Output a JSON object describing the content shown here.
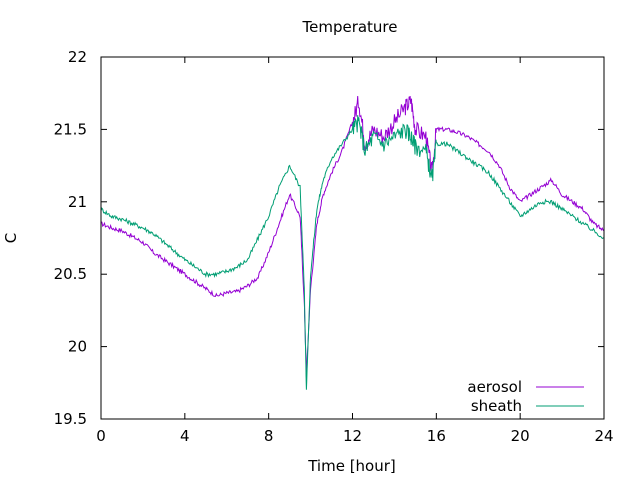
{
  "chart_data": {
    "type": "line",
    "title": "Temperature",
    "xlabel": "Time [hour]",
    "ylabel": "C",
    "xlim": [
      0,
      24
    ],
    "ylim": [
      19.5,
      22
    ],
    "xticks": [
      "0",
      "4",
      "8",
      "12",
      "16",
      "20",
      "24"
    ],
    "yticks": [
      "19.5",
      "20",
      "20.5",
      "21",
      "21.5",
      "22"
    ],
    "grid": false,
    "legend_position": "bottom-right",
    "series": [
      {
        "name": "aerosol",
        "color": "#9400d3",
        "x": [
          0,
          0.5,
          1,
          1.5,
          2,
          2.5,
          3,
          3.5,
          4,
          4.5,
          5,
          5.5,
          6,
          6.5,
          7,
          7.5,
          8,
          8.5,
          9,
          9.5,
          9.7,
          9.8,
          10,
          10.3,
          10.6,
          11,
          11.5,
          12,
          12.3,
          12.6,
          13,
          13.5,
          14,
          14.5,
          14.8,
          15,
          15.5,
          15.8,
          16,
          16.5,
          17,
          17.5,
          18,
          18.5,
          19,
          19.5,
          20,
          20.5,
          21,
          21.5,
          22,
          22.5,
          23,
          23.5,
          24
        ],
        "y": [
          20.85,
          20.82,
          20.8,
          20.76,
          20.72,
          20.65,
          20.6,
          20.55,
          20.5,
          20.45,
          20.4,
          20.35,
          20.37,
          20.38,
          20.42,
          20.48,
          20.65,
          20.85,
          21.05,
          20.9,
          20.3,
          19.8,
          20.4,
          20.85,
          21.05,
          21.2,
          21.35,
          21.55,
          21.7,
          21.4,
          21.5,
          21.45,
          21.55,
          21.65,
          21.7,
          21.5,
          21.45,
          21.2,
          21.5,
          21.5,
          21.48,
          21.45,
          21.4,
          21.35,
          21.25,
          21.1,
          21.0,
          21.05,
          21.1,
          21.15,
          21.05,
          21.0,
          20.95,
          20.85,
          20.8
        ]
      },
      {
        "name": "sheath",
        "color": "#009e73",
        "x": [
          0,
          0.5,
          1,
          1.5,
          2,
          2.5,
          3,
          3.5,
          4,
          4.5,
          5,
          5.5,
          6,
          6.5,
          7,
          7.5,
          8,
          8.5,
          9,
          9.5,
          9.7,
          9.8,
          10,
          10.3,
          10.6,
          11,
          11.5,
          12,
          12.3,
          12.6,
          13,
          13.5,
          14,
          14.5,
          14.8,
          15,
          15.5,
          15.8,
          16,
          16.5,
          17,
          17.5,
          18,
          18.5,
          19,
          19.5,
          20,
          20.5,
          21,
          21.5,
          22,
          22.5,
          23,
          23.5,
          24
        ],
        "y": [
          20.95,
          20.9,
          20.88,
          20.85,
          20.82,
          20.78,
          20.72,
          20.66,
          20.6,
          20.55,
          20.5,
          20.5,
          20.52,
          20.55,
          20.6,
          20.75,
          20.9,
          21.1,
          21.25,
          21.1,
          20.4,
          19.7,
          20.5,
          20.95,
          21.15,
          21.3,
          21.4,
          21.5,
          21.55,
          21.35,
          21.45,
          21.4,
          21.45,
          21.5,
          21.45,
          21.38,
          21.35,
          21.15,
          21.4,
          21.4,
          21.35,
          21.3,
          21.25,
          21.2,
          21.1,
          21.0,
          20.9,
          20.95,
          21.0,
          21.0,
          20.95,
          20.9,
          20.85,
          20.8,
          20.75
        ]
      }
    ]
  }
}
